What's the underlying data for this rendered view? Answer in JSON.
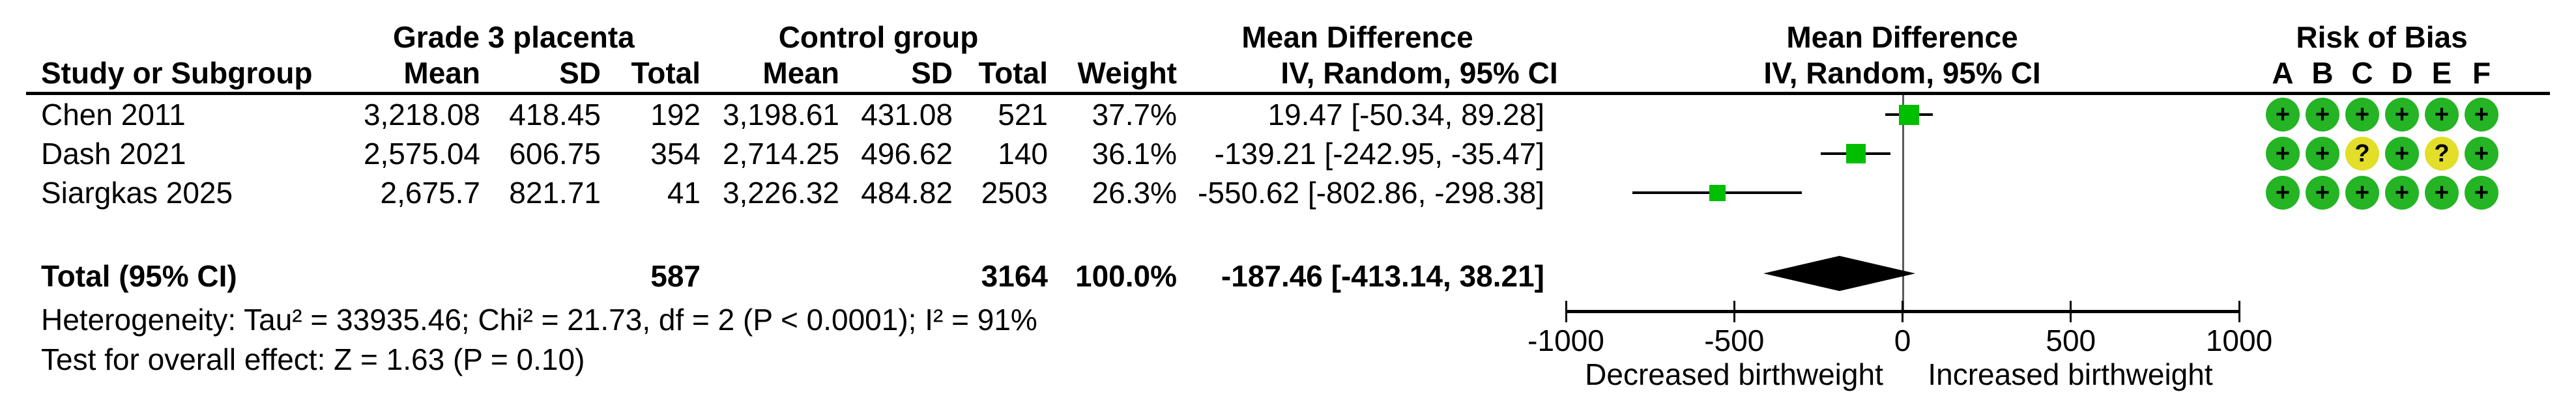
{
  "colors": {
    "marker_green": "#00BE00",
    "rob_green": "#24B424",
    "rob_yellow": "#E2DE2A",
    "diamond_black": "#000000",
    "axis_black": "#000000",
    "zero_line_gray": "#595959"
  },
  "header": {
    "group1": "Grade 3 placenta",
    "group2": "Control group",
    "study": "Study or Subgroup",
    "mean": "Mean",
    "sd": "SD",
    "total": "Total",
    "weight": "Weight",
    "md_text_title": "Mean Difference",
    "md_text_sub": "IV, Random, 95% CI",
    "md_plot_title": "Mean Difference",
    "md_plot_sub": "IV, Random, 95% CI",
    "rob_title": "Risk of Bias"
  },
  "rob_domains": [
    "A",
    "B",
    "C",
    "D",
    "E",
    "F"
  ],
  "rows": [
    {
      "study": "Chen 2011",
      "g_mean": "3,218.08",
      "g_sd": "418.45",
      "g_total": "192",
      "c_mean": "3,198.61",
      "c_sd": "431.08",
      "c_total": "521",
      "weight": "37.7%",
      "ci": "19.47 [-50.34, 89.28]",
      "rob": [
        "+",
        "+",
        "+",
        "+",
        "+",
        "+"
      ]
    },
    {
      "study": "Dash 2021",
      "g_mean": "2,575.04",
      "g_sd": "606.75",
      "g_total": "354",
      "c_mean": "2,714.25",
      "c_sd": "496.62",
      "c_total": "140",
      "weight": "36.1%",
      "ci": "-139.21 [-242.95, -35.47]",
      "rob": [
        "+",
        "+",
        "?",
        "+",
        "?",
        "+"
      ]
    },
    {
      "study": "Siargkas 2025",
      "g_mean": "2,675.7",
      "g_sd": "821.71",
      "g_total": "41",
      "c_mean": "3,226.32",
      "c_sd": "484.82",
      "c_total": "2503",
      "weight": "26.3%",
      "ci": "-550.62 [-802.86, -298.38]",
      "rob": [
        "+",
        "+",
        "+",
        "+",
        "+",
        "+"
      ]
    }
  ],
  "total_row": {
    "label": "Total (95% CI)",
    "g_total": "587",
    "c_total": "3164",
    "weight": "100.0%",
    "ci": "-187.46 [-413.14, 38.21]"
  },
  "footnotes": {
    "heterogeneity": "Heterogeneity: Tau² = 33935.46; Chi² = 21.73, df = 2 (P < 0.0001); I² = 91%",
    "overall_effect": "Test for overall effect: Z = 1.63 (P = 0.10)"
  },
  "axis_captions": {
    "left": "Decreased birthweight",
    "right": "Increased birthweight"
  },
  "chart_data": {
    "type": "forest",
    "title": "Mean Difference, IV, Random, 95% CI",
    "effect_measure": "Mean Difference",
    "model": "IV, Random, 95% CI",
    "axis": {
      "min": -1000,
      "max": 1000,
      "ticks": [
        -1000,
        -500,
        0,
        500,
        1000
      ]
    },
    "studies": [
      {
        "name": "Chen 2011",
        "md": 19.47,
        "ci_low": -50.34,
        "ci_high": 89.28,
        "weight_pct": 37.7
      },
      {
        "name": "Dash 2021",
        "md": -139.21,
        "ci_low": -242.95,
        "ci_high": -35.47,
        "weight_pct": 36.1
      },
      {
        "name": "Siargkas 2025",
        "md": -550.62,
        "ci_low": -802.86,
        "ci_high": -298.38,
        "weight_pct": 26.3
      }
    ],
    "total": {
      "name": "Total (95% CI)",
      "md": -187.46,
      "ci_low": -413.14,
      "ci_high": 38.21,
      "weight_pct": 100.0
    },
    "heterogeneity": {
      "tau2": 33935.46,
      "chi2": 21.73,
      "df": 2,
      "p": "< 0.0001",
      "i2_pct": 91
    },
    "overall_effect": {
      "z": 1.63,
      "p": 0.1
    },
    "totals": {
      "experimental_n": 587,
      "control_n": 3164
    }
  }
}
